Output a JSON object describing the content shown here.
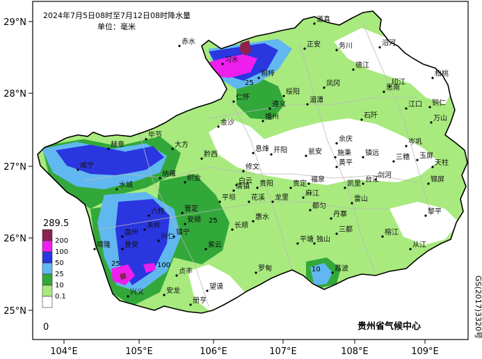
{
  "title": {
    "line1": "2024年7月5日08时至7月12日08时降水量",
    "line2": "单位：毫米"
  },
  "axes": {
    "lon_labels": [
      "104°E",
      "105°E",
      "106°E",
      "107°E",
      "108°E",
      "109°E"
    ],
    "lat_labels": [
      "29°N",
      "28°N",
      "27°N",
      "26°N",
      "25°N"
    ]
  },
  "legend": {
    "max_label": "289.5",
    "min_label": "0",
    "classes": [
      {
        "label": "200",
        "color": "#8b2252"
      },
      {
        "label": "100",
        "color": "#ee1fee"
      },
      {
        "label": "50",
        "color": "#2a36e0"
      },
      {
        "label": "25",
        "color": "#61b8f0"
      },
      {
        "label": "10",
        "color": "#33a83a"
      },
      {
        "label": "0.1",
        "color": "#a8ea7e"
      },
      {
        "label": "",
        "color": "#ffffff"
      }
    ]
  },
  "credit": "贵州省气候中心",
  "map_code": "GS(2017)3320号",
  "contour_labels": [
    "25",
    "100",
    "25",
    "25",
    "10"
  ],
  "cities": [
    {
      "name": "赤水"
    },
    {
      "name": "习水"
    },
    {
      "name": "桐梓"
    },
    {
      "name": "道真"
    },
    {
      "name": "正安"
    },
    {
      "name": "务川"
    },
    {
      "name": "沿河"
    },
    {
      "name": "德江"
    },
    {
      "name": "印江"
    },
    {
      "name": "思南"
    },
    {
      "name": "松桃"
    },
    {
      "name": "江口"
    },
    {
      "name": "铜仁"
    },
    {
      "name": "万山"
    },
    {
      "name": "仁怀"
    },
    {
      "name": "绥阳"
    },
    {
      "name": "凤冈"
    },
    {
      "name": "湄潭"
    },
    {
      "name": "遵义"
    },
    {
      "name": "石阡"
    },
    {
      "name": "播州"
    },
    {
      "name": "金沙"
    },
    {
      "name": "余庆"
    },
    {
      "name": "岑巩"
    },
    {
      "name": "玉屏"
    },
    {
      "name": "毕节"
    },
    {
      "name": "大方"
    },
    {
      "name": "黔西"
    },
    {
      "name": "息烽"
    },
    {
      "name": "开阳"
    },
    {
      "name": "瓮安"
    },
    {
      "name": "施秉"
    },
    {
      "name": "镇远"
    },
    {
      "name": "三穗"
    },
    {
      "name": "天柱"
    },
    {
      "name": "赫章"
    },
    {
      "name": "威宁"
    },
    {
      "name": "修文"
    },
    {
      "name": "黄平"
    },
    {
      "name": "剑河"
    },
    {
      "name": "台江"
    },
    {
      "name": "锦屏"
    },
    {
      "name": "纳雍"
    },
    {
      "name": "织金"
    },
    {
      "name": "白云"
    },
    {
      "name": "清镇"
    },
    {
      "name": "贵阳"
    },
    {
      "name": "贵定"
    },
    {
      "name": "福泉"
    },
    {
      "name": "凯里"
    },
    {
      "name": "水城"
    },
    {
      "name": "龙里"
    },
    {
      "name": "花溪"
    },
    {
      "name": "麻江"
    },
    {
      "name": "雷山"
    },
    {
      "name": "六枝"
    },
    {
      "name": "普定"
    },
    {
      "name": "平坝"
    },
    {
      "name": "都匀"
    },
    {
      "name": "丹寨"
    },
    {
      "name": "黎平"
    },
    {
      "name": "盘州"
    },
    {
      "name": "安顺"
    },
    {
      "name": "长顺"
    },
    {
      "name": "惠水"
    },
    {
      "name": "三都"
    },
    {
      "name": "榕江"
    },
    {
      "name": "从江"
    },
    {
      "name": "晴隆"
    },
    {
      "name": "关岭"
    },
    {
      "name": "镇宁"
    },
    {
      "name": "紫云"
    },
    {
      "name": "平塘"
    },
    {
      "name": "独山"
    },
    {
      "name": "荔波"
    },
    {
      "name": "普安"
    },
    {
      "name": "兴仁"
    },
    {
      "name": "贞丰"
    },
    {
      "name": "罗甸"
    },
    {
      "name": "望谟"
    },
    {
      "name": "兴义"
    },
    {
      "name": "安龙"
    },
    {
      "name": "册亨"
    }
  ]
}
